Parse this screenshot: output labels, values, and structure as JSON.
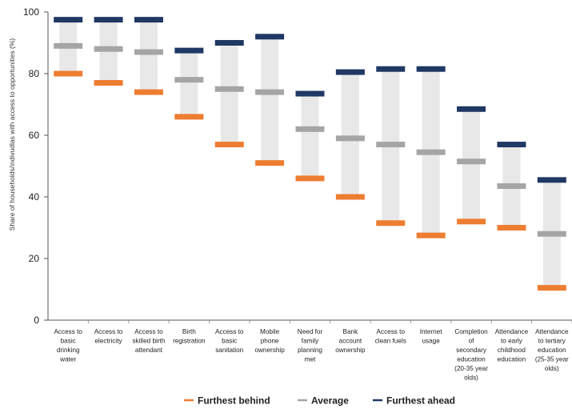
{
  "chart_data": {
    "type": "floating-range",
    "title": "",
    "ylabel": "Share of households/indivudlas with access to opportunities (%)",
    "xlabel": "",
    "ylim": [
      0,
      100
    ],
    "yticks": [
      0,
      20,
      40,
      60,
      80,
      100
    ],
    "grid": false,
    "legend_position": "bottom",
    "categories": [
      [
        "Access to",
        "basic",
        "drinking",
        "water"
      ],
      [
        "Access to",
        "electricity"
      ],
      [
        "Access to",
        "skilled birth",
        "attendant"
      ],
      [
        "Birth",
        "registration"
      ],
      [
        "Access to",
        "basic",
        "sanitation"
      ],
      [
        "Mobile",
        "phone",
        "ownership"
      ],
      [
        "Need for",
        "family",
        "planning",
        "met"
      ],
      [
        "Bank",
        "account",
        "ownership"
      ],
      [
        "Access to",
        "clean fuels"
      ],
      [
        "Internet",
        "usage"
      ],
      [
        "Completion",
        "of",
        "secondary",
        "education",
        "(20-35 year",
        "olds)"
      ],
      [
        "Attendance",
        "to early",
        "childhood",
        "education"
      ],
      [
        "Attendance",
        "to tertiary",
        "education",
        "(25-35 year",
        "olds)"
      ]
    ],
    "series": [
      {
        "name": "Furthest behind",
        "color": "#ED7D31",
        "values": [
          80,
          77,
          74,
          66,
          57,
          51,
          46,
          40,
          31.5,
          27.5,
          32,
          30,
          10.5
        ]
      },
      {
        "name": "Average",
        "color": "#A5A5A5",
        "values": [
          89,
          88,
          87,
          78,
          75,
          74,
          62,
          59,
          57,
          54.5,
          51.5,
          43.5,
          28
        ]
      },
      {
        "name": "Furthest ahead",
        "color": "#1F3864",
        "values": [
          97.5,
          97.5,
          97.5,
          87.5,
          90,
          92,
          73.5,
          80.5,
          81.5,
          81.5,
          68.5,
          57,
          45.5
        ]
      }
    ],
    "range_fill_color": "#E8E8E8"
  }
}
